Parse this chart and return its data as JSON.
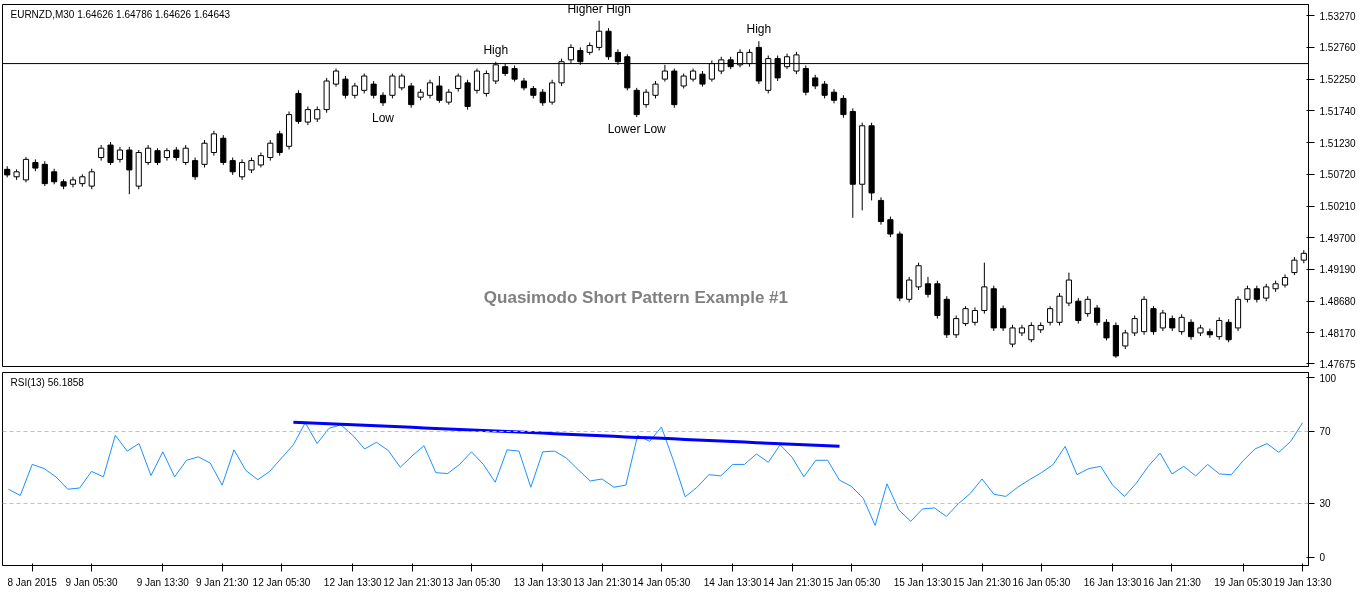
{
  "chart_data": [
    {
      "type": "candlestick",
      "title": "EURNZD,M30  1.64626 1.64786 1.64626 1.64643",
      "categories": [
        null,
        null,
        null,
        null,
        null,
        null,
        null,
        null,
        null,
        null,
        null,
        null,
        null,
        null,
        null,
        null,
        null,
        null,
        null,
        null,
        null,
        null,
        null,
        null,
        null,
        null,
        null,
        null,
        null,
        null,
        null,
        null,
        null,
        null,
        null,
        null,
        null,
        null,
        null,
        null,
        null,
        null,
        null,
        null,
        null,
        null,
        null,
        null,
        null,
        null,
        null,
        null,
        null,
        null,
        null,
        null,
        null,
        null,
        null,
        null,
        null,
        null,
        null,
        null,
        null,
        null,
        null,
        null,
        null,
        null,
        null,
        null,
        null,
        null,
        null,
        null,
        null,
        null,
        null,
        null,
        null,
        null,
        null,
        null,
        null,
        null,
        null,
        null,
        null,
        null,
        null,
        null,
        null,
        null,
        null,
        null,
        null,
        null,
        null,
        null,
        null,
        null,
        null,
        null,
        null,
        null,
        null,
        null,
        null,
        null,
        null,
        null,
        null,
        null,
        null,
        null,
        null,
        null,
        null,
        null,
        null,
        null,
        null,
        null,
        null,
        null,
        null,
        null,
        null,
        null,
        null,
        null,
        null,
        null,
        null,
        null,
        null,
        null,
        null
      ],
      "ohlc": [
        [
          1.508,
          1.5085,
          1.5067,
          1.5071
        ],
        [
          1.5068,
          1.508,
          1.5063,
          1.5076
        ],
        [
          1.5063,
          1.51,
          1.5059,
          1.5096
        ],
        [
          1.5091,
          1.5096,
          1.5077,
          1.5082
        ],
        [
          1.5088,
          1.5093,
          1.5053,
          1.5057
        ],
        [
          1.5076,
          1.5081,
          1.5056,
          1.506
        ],
        [
          1.506,
          1.5064,
          1.5048,
          1.5053
        ],
        [
          1.5056,
          1.5068,
          1.5051,
          1.5063
        ],
        [
          1.5057,
          1.5072,
          1.5052,
          1.5068
        ],
        [
          1.5053,
          1.5081,
          1.5048,
          1.5076
        ],
        [
          1.5099,
          1.5119,
          1.5094,
          1.5114
        ],
        [
          1.5119,
          1.5124,
          1.5087,
          1.5091
        ],
        [
          1.5096,
          1.5116,
          1.5091,
          1.5111
        ],
        [
          1.5111,
          1.5116,
          1.504,
          1.5079
        ],
        [
          1.5053,
          1.5111,
          1.5048,
          1.5107
        ],
        [
          1.5091,
          1.5119,
          1.5087,
          1.5114
        ],
        [
          1.511,
          1.5114,
          1.5087,
          1.5091
        ],
        [
          1.5099,
          1.5114,
          1.5094,
          1.511
        ],
        [
          1.5111,
          1.5116,
          1.5094,
          1.5099
        ],
        [
          1.5091,
          1.5119,
          1.5087,
          1.5114
        ],
        [
          1.5094,
          1.5099,
          1.5063,
          1.5068
        ],
        [
          1.5088,
          1.5127,
          1.5083,
          1.5122
        ],
        [
          1.5107,
          1.5142,
          1.5102,
          1.5137
        ],
        [
          1.513,
          1.5135,
          1.5087,
          1.5091
        ],
        [
          1.5094,
          1.5099,
          1.5071,
          1.5076
        ],
        [
          1.5068,
          1.5096,
          1.5063,
          1.5091
        ],
        [
          1.5079,
          1.5099,
          1.5074,
          1.5094
        ],
        [
          1.5087,
          1.5107,
          1.5083,
          1.5102
        ],
        [
          1.5099,
          1.5127,
          1.5094,
          1.5122
        ],
        [
          1.5137,
          1.5142,
          1.5102,
          1.5107
        ],
        [
          1.5117,
          1.5173,
          1.5112,
          1.5168
        ],
        [
          1.5202,
          1.5207,
          1.5153,
          1.5157
        ],
        [
          1.5156,
          1.5181,
          1.5151,
          1.5176
        ],
        [
          1.5161,
          1.5181,
          1.5156,
          1.5176
        ],
        [
          1.5176,
          1.5227,
          1.5171,
          1.5222
        ],
        [
          1.5217,
          1.5242,
          1.5213,
          1.5238
        ],
        [
          1.5225,
          1.523,
          1.5194,
          1.5199
        ],
        [
          1.5199,
          1.5219,
          1.5194,
          1.5214
        ],
        [
          1.5207,
          1.5234,
          1.5202,
          1.523
        ],
        [
          1.5217,
          1.5222,
          1.5194,
          1.5199
        ],
        [
          1.5199,
          1.5204,
          1.5182,
          1.5187
        ],
        [
          1.5199,
          1.5234,
          1.5194,
          1.523
        ],
        [
          1.5211,
          1.5234,
          1.5207,
          1.523
        ],
        [
          1.5214,
          1.5219,
          1.5179,
          1.5184
        ],
        [
          1.5196,
          1.5209,
          1.5191,
          1.5204
        ],
        [
          1.5199,
          1.5224,
          1.5194,
          1.5219
        ],
        [
          1.5214,
          1.523,
          1.5187,
          1.5191
        ],
        [
          1.5188,
          1.5209,
          1.5184,
          1.5204
        ],
        [
          1.521,
          1.5234,
          1.5205,
          1.523
        ],
        [
          1.5219,
          1.5224,
          1.5176,
          1.5181
        ],
        [
          1.5207,
          1.5242,
          1.5202,
          1.5238
        ],
        [
          1.5202,
          1.5239,
          1.5197,
          1.5234
        ],
        [
          1.5222,
          1.5253,
          1.5217,
          1.5248
        ],
        [
          1.5245,
          1.525,
          1.523,
          1.5234
        ],
        [
          1.5242,
          1.5247,
          1.5221,
          1.5225
        ],
        [
          1.5222,
          1.5227,
          1.5207,
          1.5211
        ],
        [
          1.521,
          1.5214,
          1.5194,
          1.5199
        ],
        [
          1.5204,
          1.5209,
          1.5182,
          1.5187
        ],
        [
          1.5188,
          1.5224,
          1.5184,
          1.5219
        ],
        [
          1.5219,
          1.5258,
          1.5214,
          1.5253
        ],
        [
          1.5256,
          1.5281,
          1.5251,
          1.5276
        ],
        [
          1.5271,
          1.5276,
          1.5248,
          1.5253
        ],
        [
          1.5268,
          1.5284,
          1.5264,
          1.5279
        ],
        [
          1.5276,
          1.5319,
          1.5271,
          1.5302
        ],
        [
          1.5302,
          1.5307,
          1.5256,
          1.5261
        ],
        [
          1.5268,
          1.5273,
          1.5248,
          1.5253
        ],
        [
          1.5261,
          1.5265,
          1.5207,
          1.5211
        ],
        [
          1.5207,
          1.5211,
          1.5164,
          1.5168
        ],
        [
          1.5184,
          1.5209,
          1.5179,
          1.5204
        ],
        [
          1.5199,
          1.5222,
          1.5194,
          1.5217
        ],
        [
          1.5225,
          1.5248,
          1.5221,
          1.5238
        ],
        [
          1.5238,
          1.5242,
          1.5179,
          1.5184
        ],
        [
          1.5214,
          1.5234,
          1.521,
          1.523
        ],
        [
          1.5225,
          1.5242,
          1.5221,
          1.5238
        ],
        [
          1.5233,
          1.5238,
          1.5213,
          1.5217
        ],
        [
          1.5225,
          1.5255,
          1.5221,
          1.525
        ],
        [
          1.5238,
          1.5261,
          1.5233,
          1.5256
        ],
        [
          1.5256,
          1.5261,
          1.5241,
          1.5245
        ],
        [
          1.5248,
          1.5273,
          1.5244,
          1.5268
        ],
        [
          1.525,
          1.5273,
          1.5245,
          1.5268
        ],
        [
          1.5276,
          1.5286,
          1.5217,
          1.5222
        ],
        [
          1.5207,
          1.5263,
          1.5202,
          1.5258
        ],
        [
          1.5258,
          1.5263,
          1.5222,
          1.5227
        ],
        [
          1.5245,
          1.5266,
          1.5241,
          1.5261
        ],
        [
          1.5238,
          1.5269,
          1.5233,
          1.5264
        ],
        [
          1.5242,
          1.5247,
          1.5199,
          1.5204
        ],
        [
          1.5227,
          1.5232,
          1.5209,
          1.5214
        ],
        [
          1.5217,
          1.5222,
          1.5194,
          1.5199
        ],
        [
          1.5204,
          1.5209,
          1.5186,
          1.5191
        ],
        [
          1.5194,
          1.5199,
          1.5163,
          1.5168
        ],
        [
          1.5173,
          1.5178,
          1.5002,
          1.5056
        ],
        [
          1.5056,
          1.5155,
          1.5014,
          1.515
        ],
        [
          1.515,
          1.5155,
          1.503,
          1.5042
        ],
        [
          1.503,
          1.5035,
          1.4991,
          1.4996
        ],
        [
          1.4999,
          1.5004,
          1.4971,
          1.4976
        ],
        [
          1.4976,
          1.498,
          1.4868,
          1.4873
        ],
        [
          1.4871,
          1.4907,
          1.4866,
          1.4902
        ],
        [
          1.4891,
          1.493,
          1.4886,
          1.4925
        ],
        [
          1.4896,
          1.4907,
          1.4874,
          1.4879
        ],
        [
          1.4896,
          1.4901,
          1.484,
          1.4845
        ],
        [
          1.4871,
          1.4876,
          1.4809,
          1.4814
        ],
        [
          1.4814,
          1.4845,
          1.4809,
          1.484
        ],
        [
          1.4832,
          1.486,
          1.4828,
          1.4856
        ],
        [
          1.4834,
          1.4858,
          1.4829,
          1.4853
        ],
        [
          1.4853,
          1.493,
          1.4848,
          1.4891
        ],
        [
          1.4888,
          1.4893,
          1.482,
          1.4825
        ],
        [
          1.4856,
          1.4861,
          1.482,
          1.4825
        ],
        [
          1.4799,
          1.483,
          1.4794,
          1.4825
        ],
        [
          1.4817,
          1.483,
          1.4812,
          1.4825
        ],
        [
          1.4806,
          1.4834,
          1.4802,
          1.4829
        ],
        [
          1.4822,
          1.4834,
          1.4817,
          1.4829
        ],
        [
          1.4834,
          1.486,
          1.4829,
          1.4856
        ],
        [
          1.4834,
          1.4881,
          1.4829,
          1.4876
        ],
        [
          1.4865,
          1.4914,
          1.486,
          1.4902
        ],
        [
          1.4868,
          1.4873,
          1.4832,
          1.4837
        ],
        [
          1.4848,
          1.4876,
          1.4843,
          1.4871
        ],
        [
          1.4857,
          1.4862,
          1.4829,
          1.4834
        ],
        [
          1.4834,
          1.4839,
          1.4805,
          1.4809
        ],
        [
          1.4829,
          1.4834,
          1.4777,
          1.478
        ],
        [
          1.4796,
          1.4822,
          1.4791,
          1.4817
        ],
        [
          1.4817,
          1.4845,
          1.4812,
          1.484
        ],
        [
          1.4819,
          1.4876,
          1.4814,
          1.4871
        ],
        [
          1.4856,
          1.486,
          1.4814,
          1.4819
        ],
        [
          1.4825,
          1.4854,
          1.482,
          1.4849
        ],
        [
          1.484,
          1.4845,
          1.482,
          1.4825
        ],
        [
          1.4819,
          1.4847,
          1.4814,
          1.4842
        ],
        [
          1.4834,
          1.4839,
          1.4806,
          1.4811
        ],
        [
          1.4817,
          1.483,
          1.4812,
          1.4825
        ],
        [
          1.4819,
          1.4824,
          1.4809,
          1.4814
        ],
        [
          1.4811,
          1.4842,
          1.4806,
          1.4837
        ],
        [
          1.4834,
          1.4839,
          1.4802,
          1.4806
        ],
        [
          1.4825,
          1.4876,
          1.482,
          1.4871
        ],
        [
          1.4871,
          1.4893,
          1.4866,
          1.4888
        ],
        [
          1.4888,
          1.4893,
          1.4866,
          1.4871
        ],
        [
          1.4873,
          1.4896,
          1.4868,
          1.4891
        ],
        [
          1.4888,
          1.4901,
          1.4883,
          1.4896
        ],
        [
          1.4894,
          1.4911,
          1.489,
          1.4906
        ],
        [
          1.4914,
          1.4939,
          1.491,
          1.4934
        ],
        [
          1.4934,
          1.495,
          1.4929,
          1.4945
        ]
      ],
      "ref_lines": [
        {
          "axis": "y",
          "value": 1.525,
          "color": "#000000",
          "line_style": "solid"
        }
      ],
      "ylim": [
        1.4763,
        1.5345
      ],
      "yticks": [
        {
          "value": 1.5327,
          "label": "1.53270"
        },
        {
          "value": 1.5276,
          "label": "1.52760"
        },
        {
          "value": 1.5225,
          "label": "1.52250"
        },
        {
          "value": 1.5174,
          "label": "1.51740"
        },
        {
          "value": 1.5123,
          "label": "1.51230"
        },
        {
          "value": 1.5072,
          "label": "1.50720"
        },
        {
          "value": 1.5021,
          "label": "1.50210"
        },
        {
          "value": 1.497,
          "label": "1.49700"
        },
        {
          "value": 1.4919,
          "label": "1.49190"
        },
        {
          "value": 1.4868,
          "label": "1.48680"
        },
        {
          "value": 1.4817,
          "label": "1.48170"
        },
        {
          "value": 1.47675,
          "label": "1.47675"
        }
      ],
      "tick_labels": "y",
      "annotations": [
        {
          "text": "High",
          "y": 1.5253
        },
        {
          "text": "Low",
          "y": 1.5182
        },
        {
          "text": "Higher High",
          "y": 1.5319
        },
        {
          "text": "Lower Low",
          "y": 1.5164
        },
        {
          "text": "High",
          "y": 1.5286
        },
        "Quasimodo Short Pattern Example #1"
      ]
    },
    {
      "type": "line",
      "title": "RSI(13) 56.1858",
      "categories": [
        null,
        null,
        "8 Jan 2015",
        null,
        null,
        null,
        null,
        "9 Jan 05:30",
        null,
        null,
        null,
        null,
        null,
        "9 Jan 13:30",
        null,
        null,
        null,
        null,
        "9 Jan 21:30",
        null,
        null,
        null,
        null,
        "12 Jan 05:30",
        null,
        null,
        null,
        null,
        null,
        "12 Jan 13:30",
        null,
        null,
        null,
        null,
        "12 Jan 21:30",
        null,
        null,
        null,
        null,
        "13 Jan 05:30",
        null,
        null,
        null,
        null,
        null,
        "13 Jan 13:30",
        null,
        null,
        null,
        null,
        "13 Jan 21:30",
        null,
        null,
        null,
        null,
        "14 Jan 05:30",
        null,
        null,
        null,
        null,
        null,
        "14 Jan 13:30",
        null,
        null,
        null,
        null,
        "14 Jan 21:30",
        null,
        null,
        null,
        null,
        "15 Jan 05:30",
        null,
        null,
        null,
        null,
        null,
        "15 Jan 13:30",
        null,
        null,
        null,
        null,
        "15 Jan 21:30",
        null,
        null,
        null,
        null,
        "16 Jan 05:30",
        null,
        null,
        null,
        null,
        null,
        "16 Jan 13:30",
        null,
        null,
        null,
        null,
        "16 Jan 21:30",
        null,
        null,
        null,
        null,
        null,
        "19 Jan 05:30",
        null,
        null,
        null,
        null,
        "19 Jan 13:30"
      ],
      "series": [
        {
          "color": "#1e90ff",
          "values": [
            37.9,
            34.4,
            51.7,
            49.4,
            44.8,
            37.9,
            38.6,
            47.8,
            44.8,
            67.9,
            59.1,
            63.3,
            45.5,
            58.7,
            44.8,
            54.0,
            55.9,
            52.4,
            40.2,
            59.8,
            48.3,
            43.2,
            47.8,
            55.2,
            62.6,
            74.9,
            63.3,
            71.8,
            73.7,
            67.9,
            60.3,
            64.0,
            59.4,
            50.1,
            56.4,
            62.1,
            47.1,
            46.6,
            51.7,
            58.7,
            51.7,
            41.8,
            59.8,
            59.1,
            39.0,
            58.7,
            59.1,
            55.2,
            48.7,
            42.5,
            43.6,
            39.0,
            40.2,
            67.9,
            64.5,
            72.5,
            54.0,
            33.7,
            39.0,
            46.0,
            45.3,
            51.7,
            51.7,
            57.5,
            52.9,
            62.6,
            55.7,
            44.8,
            54.0,
            54.0,
            42.9,
            39.5,
            32.8,
            17.8,
            40.9,
            26.3,
            20.1,
            27.0,
            27.5,
            22.8,
            29.8,
            35.5,
            43.6,
            35.1,
            33.9,
            39.0,
            43.2,
            47.1,
            51.7,
            61.7,
            46.0,
            49.4,
            50.6,
            40.2,
            33.9,
            41.3,
            50.6,
            58.0,
            46.4,
            50.6,
            45.3,
            51.7,
            46.4,
            46.0,
            53.8,
            60.3,
            63.3,
            58.4,
            64.5,
            74.9
          ]
        },
        {
          "color": "#0000ff",
          "values": [
            null,
            null,
            null,
            null,
            null,
            null,
            null,
            null,
            null,
            null,
            null,
            null,
            null,
            null,
            null,
            null,
            null,
            null,
            null,
            null,
            null,
            null,
            null,
            null,
            75.2,
            74.9,
            74.6,
            74.3,
            74.0,
            73.8,
            73.5,
            73.2,
            72.9,
            72.6,
            72.3,
            72.0,
            71.7,
            71.4,
            71.1,
            70.8,
            70.5,
            70.3,
            70.0,
            69.7,
            69.4,
            69.1,
            68.8,
            68.5,
            68.2,
            67.9,
            67.6,
            67.3,
            67.0,
            66.7,
            66.5,
            66.2,
            65.9,
            65.6,
            65.3,
            65.0,
            64.7,
            64.4,
            64.1,
            63.8,
            63.5,
            63.2,
            62.9,
            62.7,
            62.4,
            62.1,
            61.8,
            null,
            null,
            null,
            null,
            null,
            null,
            null,
            null,
            null,
            null,
            null,
            null,
            null,
            null,
            null,
            null,
            null,
            null,
            null,
            null,
            null,
            null,
            null,
            null,
            null,
            null,
            null,
            null,
            null,
            null,
            null,
            null,
            null,
            null,
            null,
            null,
            null,
            null,
            null
          ]
        }
      ],
      "ylim": [
        -4.5,
        102.8
      ],
      "yticks": [
        0,
        30,
        70,
        100
      ],
      "ref_lines": [
        {
          "axis": "y",
          "value": 70,
          "color": "#c0c0c0",
          "line_style": "dashed"
        },
        {
          "axis": "y",
          "value": 30,
          "color": "#c0c0c0",
          "line_style": "dashed"
        }
      ]
    }
  ]
}
